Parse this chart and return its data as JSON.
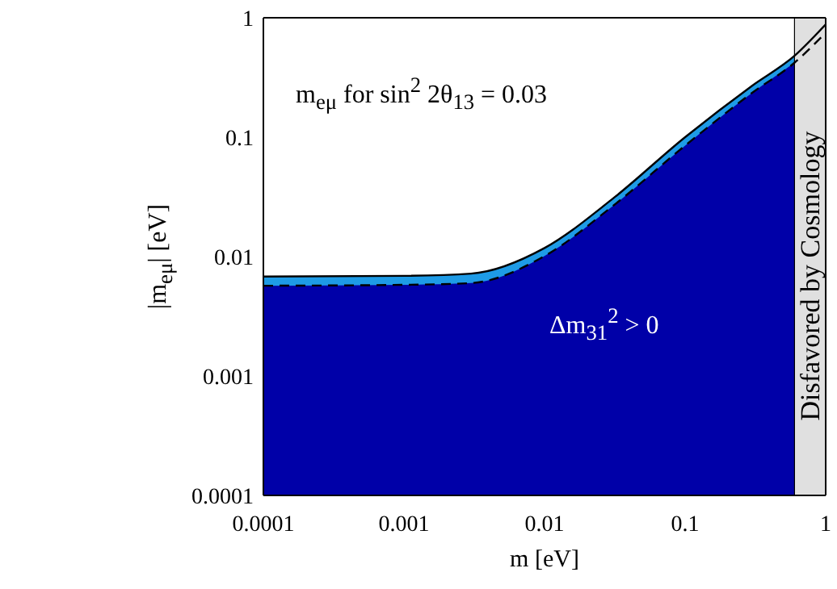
{
  "chart_data": {
    "type": "area",
    "xlabel": "m [eV]",
    "ylabel": "|m$_{eμ}$| [eV]",
    "log": "xy",
    "xlim": [
      0.0001,
      1
    ],
    "ylim": [
      0.0001,
      1
    ],
    "xticks": [
      0.0001,
      0.001,
      0.01,
      0.1,
      1
    ],
    "yticks": [
      0.0001,
      0.001,
      0.01,
      0.1,
      1
    ],
    "legend": false,
    "series": [
      {
        "color": "#1e9be6",
        "x": [
          0.0001,
          0.001,
          0.003,
          0.01,
          0.03,
          0.1,
          0.3,
          0.6
        ],
        "values": [
          0.0068,
          0.0069,
          0.0072,
          0.0118,
          0.03,
          0.1,
          0.27,
          0.48
        ]
      },
      {
        "color": "#0000a8",
        "x": [
          0.0001,
          0.001,
          0.003,
          0.01,
          0.03,
          0.1,
          0.3,
          0.6
        ],
        "values": [
          0.0057,
          0.0058,
          0.006,
          0.0101,
          0.026,
          0.085,
          0.235,
          0.42
        ]
      },
      {
        "type": "line",
        "color": "#000000",
        "line_style": "solid",
        "x": [
          0.0001,
          0.001,
          0.003,
          0.01,
          0.03,
          0.1,
          0.3,
          0.6,
          1
        ],
        "values": [
          0.0068,
          0.0069,
          0.0072,
          0.0118,
          0.03,
          0.1,
          0.27,
          0.48,
          0.88
        ]
      },
      {
        "type": "line",
        "color": "#000000",
        "line_style": "dashed",
        "x": [
          0.0001,
          0.001,
          0.003,
          0.01,
          0.03,
          0.1,
          0.3,
          0.6,
          1
        ],
        "values": [
          0.0057,
          0.0058,
          0.006,
          0.0101,
          0.026,
          0.085,
          0.235,
          0.42,
          0.75
        ]
      }
    ],
    "bands": [
      {
        "axis": "x",
        "from": 0.6,
        "to": 1,
        "label": "Disfavored by Cosmology",
        "color": "#e0e0e0"
      }
    ],
    "annotations": [
      "m$_{eμ}$ for sin$^{2}$ 2θ$_{13}$ = 0.03",
      "Δm$_{31}$$^{2}$ > 0"
    ]
  }
}
